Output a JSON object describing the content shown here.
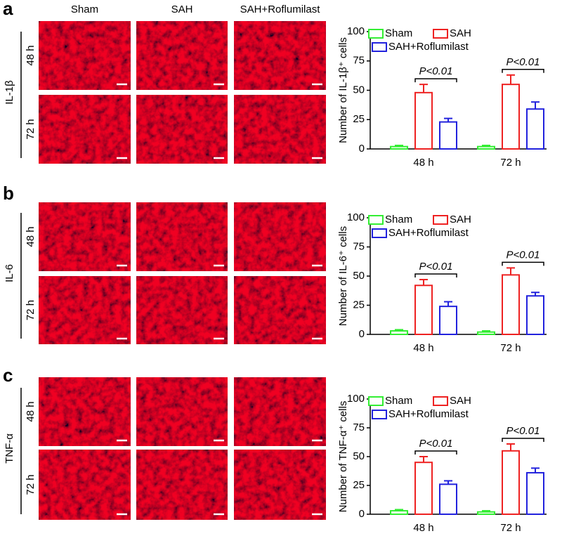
{
  "figure": {
    "column_labels": [
      "Sham",
      "SAH",
      "SAH+Roflumilast"
    ],
    "panels": [
      {
        "letter": "a",
        "marker": "IL-1β",
        "row_labels": [
          "48 h",
          "72 h"
        ]
      },
      {
        "letter": "b",
        "marker": "IL-6",
        "row_labels": [
          "48 h",
          "72 h"
        ]
      },
      {
        "letter": "c",
        "marker": "TNF-α",
        "row_labels": [
          "48 h",
          "72 h"
        ]
      }
    ]
  },
  "chart_data": [
    {
      "type": "bar",
      "y_label": "Number of IL-1β⁺ cells",
      "categories": [
        "48 h",
        "72 h"
      ],
      "series": [
        {
          "name": "Sham",
          "color": "#33ee33",
          "values": [
            2,
            2
          ],
          "errors": [
            1,
            1
          ]
        },
        {
          "name": "SAH",
          "color": "#ee2222",
          "values": [
            48,
            55
          ],
          "errors": [
            7,
            8
          ]
        },
        {
          "name": "SAH+Roflumilast",
          "color": "#2222dd",
          "values": [
            23,
            34
          ],
          "errors": [
            3,
            6
          ]
        }
      ],
      "annotations": [
        "P<0.01",
        "P<0.01"
      ],
      "ylim": [
        0,
        100
      ],
      "yticks": [
        0,
        25,
        50,
        75,
        100
      ]
    },
    {
      "type": "bar",
      "y_label": "Number of IL-6⁺ cells",
      "categories": [
        "48 h",
        "72 h"
      ],
      "series": [
        {
          "name": "Sham",
          "color": "#33ee33",
          "values": [
            3,
            2
          ],
          "errors": [
            1,
            1
          ]
        },
        {
          "name": "SAH",
          "color": "#ee2222",
          "values": [
            42,
            51
          ],
          "errors": [
            5,
            6
          ]
        },
        {
          "name": "SAH+Roflumilast",
          "color": "#2222dd",
          "values": [
            24,
            33
          ],
          "errors": [
            4,
            3
          ]
        }
      ],
      "annotations": [
        "P<0.01",
        "P<0.01"
      ],
      "ylim": [
        0,
        100
      ],
      "yticks": [
        0,
        25,
        50,
        75,
        100
      ]
    },
    {
      "type": "bar",
      "y_label": "Number of TNF-α⁺ cells",
      "categories": [
        "48 h",
        "72 h"
      ],
      "series": [
        {
          "name": "Sham",
          "color": "#33ee33",
          "values": [
            3,
            2
          ],
          "errors": [
            1,
            1
          ]
        },
        {
          "name": "SAH",
          "color": "#ee2222",
          "values": [
            45,
            55
          ],
          "errors": [
            5,
            6
          ]
        },
        {
          "name": "SAH+Roflumilast",
          "color": "#2222dd",
          "values": [
            26,
            36
          ],
          "errors": [
            3,
            4
          ]
        }
      ],
      "annotations": [
        "P<0.01",
        "P<0.01"
      ],
      "ylim": [
        0,
        100
      ],
      "yticks": [
        0,
        25,
        50,
        75,
        100
      ]
    }
  ]
}
